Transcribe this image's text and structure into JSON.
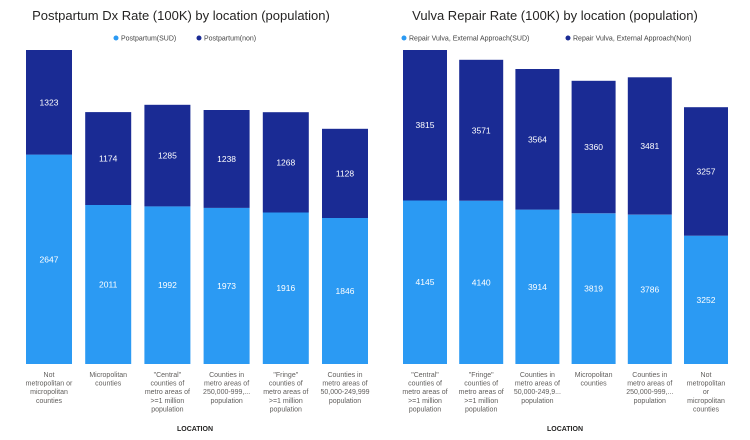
{
  "colors": {
    "light": "#2b9af3",
    "dark": "#1a2b94",
    "text_on_bar": "#ffffff"
  },
  "chart_data": [
    {
      "type": "bar",
      "stacked": true,
      "title": "Postpartum Dx Rate (100K) by location (population)",
      "xlabel": "LOCATION",
      "ylabel": "",
      "categories": [
        "Not metropolitan or micropolitan counties",
        "Micropolitan counties",
        "\"Central\" counties of metro areas of >=1 million population",
        "Counties in metro areas of 250,000-999,... population",
        "\"Fringe\" counties of metro areas of >=1 million population",
        "Counties in metro areas of 50,000-249,999 population"
      ],
      "category_lines": [
        [
          "Not",
          "metropolitan or",
          "micropolitan",
          "counties"
        ],
        [
          "Micropolitan",
          "counties"
        ],
        [
          "\"Central\"",
          "counties of",
          "metro areas of",
          ">=1 million",
          "population"
        ],
        [
          "Counties in",
          "metro areas of",
          "250,000-999,...",
          "population"
        ],
        [
          "\"Fringe\"",
          "counties of",
          "metro areas of",
          ">=1 million",
          "population"
        ],
        [
          "Counties in",
          "metro areas of",
          "50,000-249,999",
          "population"
        ]
      ],
      "series": [
        {
          "name": "Postpartum(SUD)",
          "values": [
            2647,
            2011,
            1992,
            1973,
            1916,
            1846
          ]
        },
        {
          "name": "Postpartum(non)",
          "values": [
            1323,
            1174,
            1285,
            1238,
            1268,
            1128
          ]
        }
      ],
      "ylim": [
        0,
        3970
      ]
    },
    {
      "type": "bar",
      "stacked": true,
      "title": "Vulva Repair Rate (100K) by location (population)",
      "xlabel": "LOCATION",
      "ylabel": "",
      "categories": [
        "\"Central\" counties of metro areas of >=1 million population",
        "\"Fringe\" counties of metro areas of >=1 million population",
        "Counties in metro areas of 50,000-249,9... population",
        "Micropolitan counties",
        "Counties in metro areas of 250,000-999,... population",
        "Not metropolitan or micropolitan counties"
      ],
      "category_lines": [
        [
          "\"Central\"",
          "counties of",
          "metro areas of",
          ">=1 million",
          "population"
        ],
        [
          "\"Fringe\"",
          "counties of",
          "metro areas of",
          ">=1 million",
          "population"
        ],
        [
          "Counties in",
          "metro areas of",
          "50,000-249,9...",
          "population"
        ],
        [
          "Micropolitan",
          "counties"
        ],
        [
          "Counties in",
          "metro areas of",
          "250,000-999,...",
          "population"
        ],
        [
          "Not",
          "metropolitan",
          "or",
          "micropolitan",
          "counties"
        ]
      ],
      "series": [
        {
          "name": "Repair Vulva, External Approach(SUD)",
          "values": [
            4145,
            4140,
            3914,
            3819,
            3786,
            3252
          ]
        },
        {
          "name": "Repair Vulva, External Approach(Non)",
          "values": [
            3815,
            3571,
            3564,
            3360,
            3481,
            3257
          ]
        }
      ],
      "ylim": [
        0,
        7960
      ]
    }
  ]
}
